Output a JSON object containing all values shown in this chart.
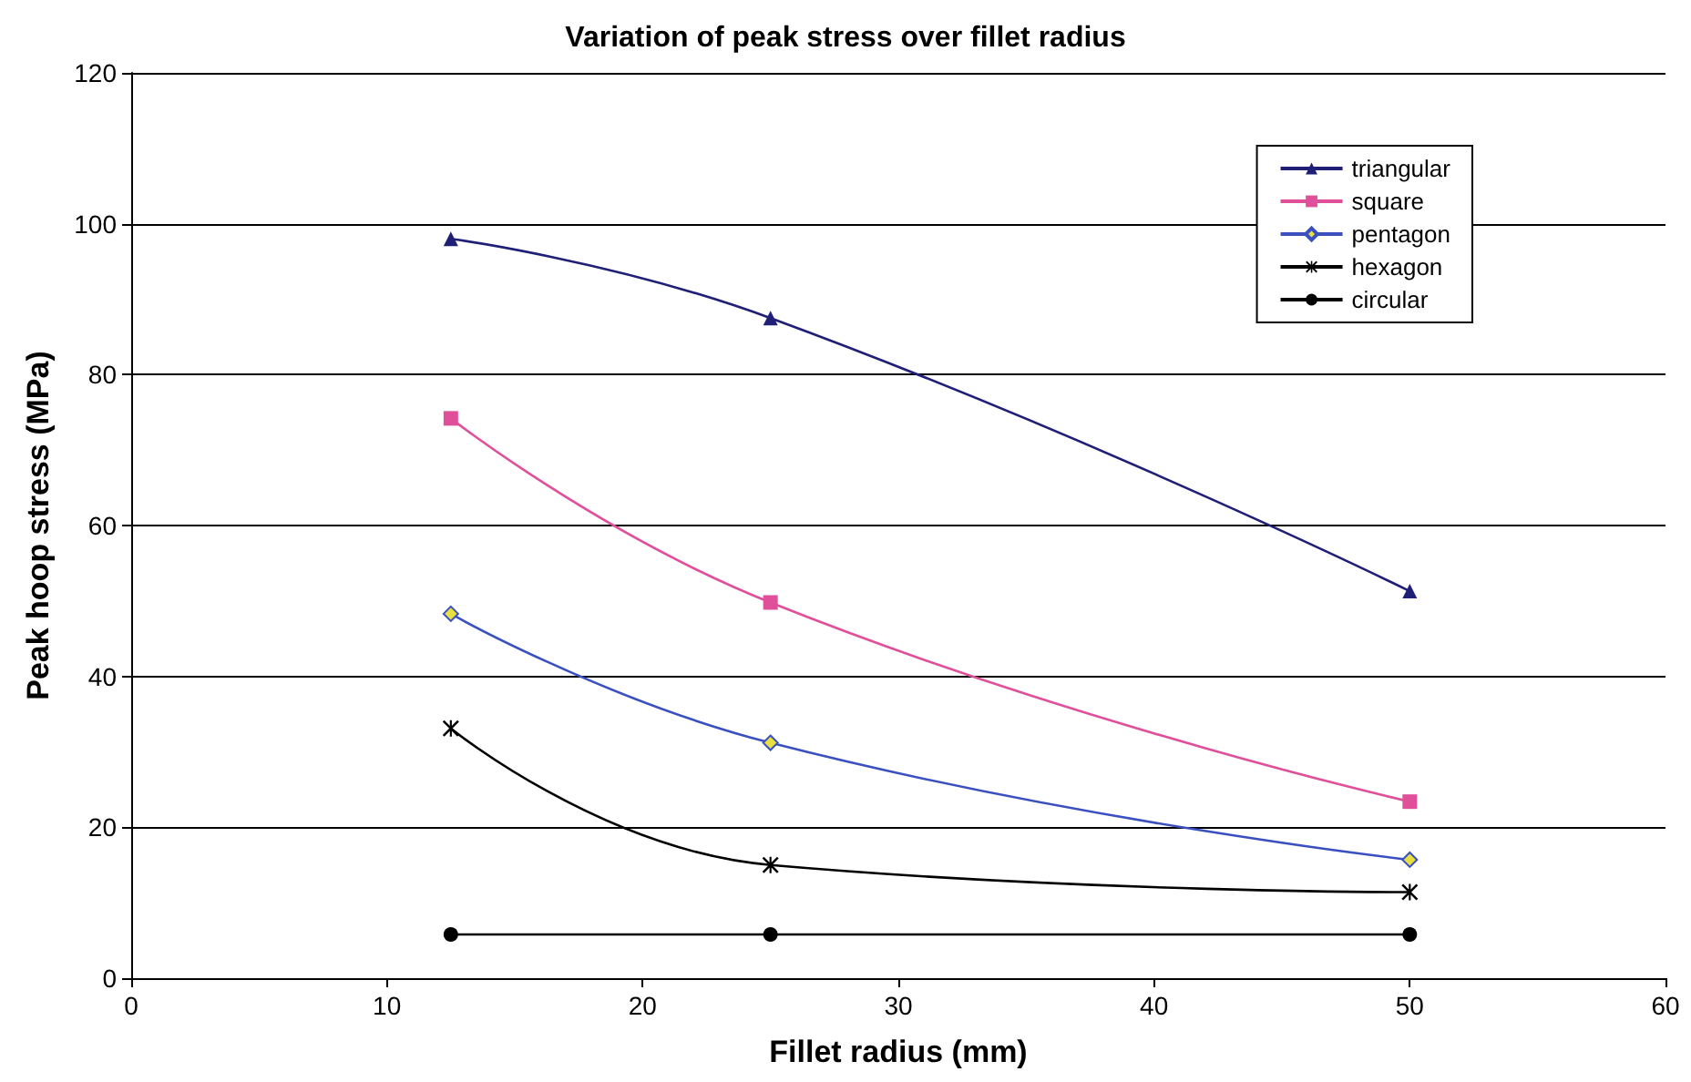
{
  "chart_data": {
    "type": "line",
    "title": "Variation of peak stress over fillet radius",
    "xlabel": "Fillet radius (mm)",
    "ylabel": "Peak hoop stress (MPa)",
    "x": [
      12.5,
      25,
      50
    ],
    "series": [
      {
        "name": "triangular",
        "color": "#1f1f78",
        "marker": "triangle",
        "values": [
          98,
          87.5,
          51.3
        ]
      },
      {
        "name": "square",
        "color": "#e0509a",
        "marker": "square",
        "values": [
          74.2,
          49.8,
          23.4
        ]
      },
      {
        "name": "pentagon",
        "color": "#3a50c0",
        "marker": "diamond",
        "values": [
          48.3,
          31.2,
          15.7
        ]
      },
      {
        "name": "hexagon",
        "color": "#000000",
        "marker": "cross",
        "values": [
          33.1,
          15.0,
          11.4
        ]
      },
      {
        "name": "circular",
        "color": "#000000",
        "marker": "circle",
        "values": [
          5.8,
          5.8,
          5.8
        ]
      }
    ],
    "xlim": [
      0,
      60
    ],
    "xticks": [
      0,
      10,
      20,
      30,
      40,
      50,
      60
    ],
    "ylim": [
      0,
      120
    ],
    "yticks": [
      0,
      20,
      40,
      60,
      80,
      100,
      120
    ],
    "grid": "y",
    "legend": "top right",
    "line_style": "solid"
  }
}
